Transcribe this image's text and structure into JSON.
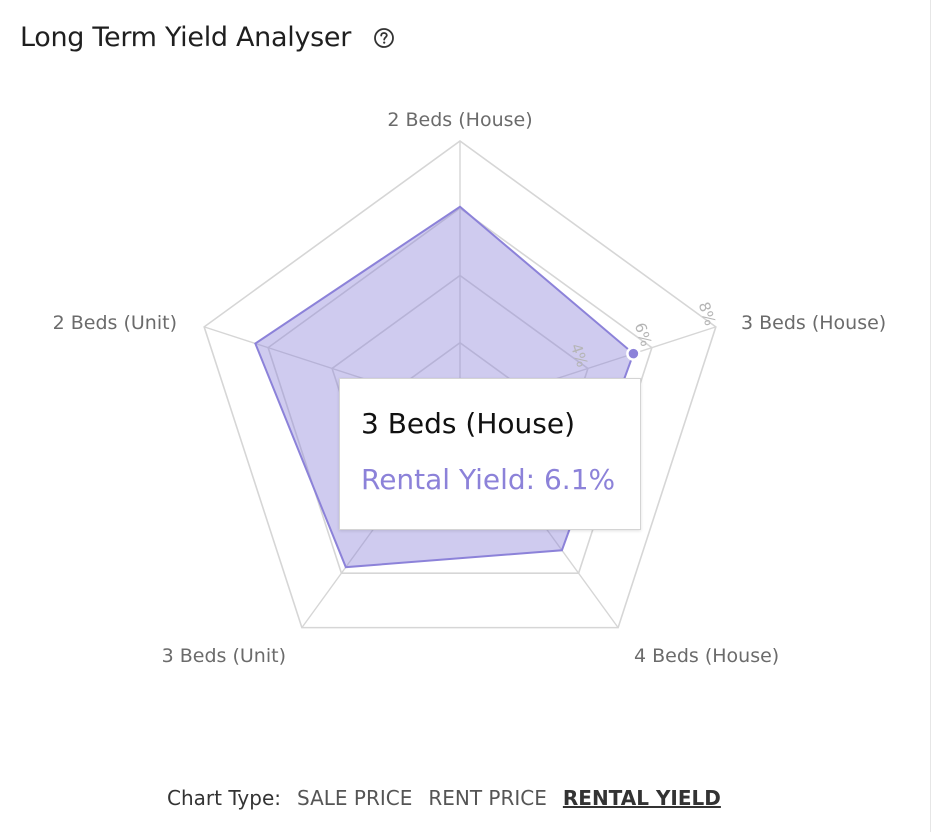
{
  "header": {
    "title": "Long Term Yield Analyser",
    "help_icon": "question-circle-icon"
  },
  "chart_data": {
    "type": "radar",
    "axes": [
      "2 Beds (House)",
      "3 Beds (House)",
      "4 Beds (House)",
      "3 Beds (Unit)",
      "2 Beds (Unit)"
    ],
    "series": [
      {
        "values": [
          6.8,
          6.1,
          5.8,
          6.5,
          7.2
        ],
        "color": "#8c82d9"
      }
    ],
    "ticks": [
      "4%",
      "6%",
      "8%"
    ],
    "rlim": [
      0,
      9
    ]
  },
  "tooltip": {
    "title": "3 Beds (House)",
    "value": "Rental Yield: 6.1%"
  },
  "chart_type": {
    "label": "Chart Type:",
    "options": [
      "SALE PRICE",
      "RENT PRICE",
      "RENTAL YIELD"
    ],
    "active": "RENTAL YIELD"
  }
}
